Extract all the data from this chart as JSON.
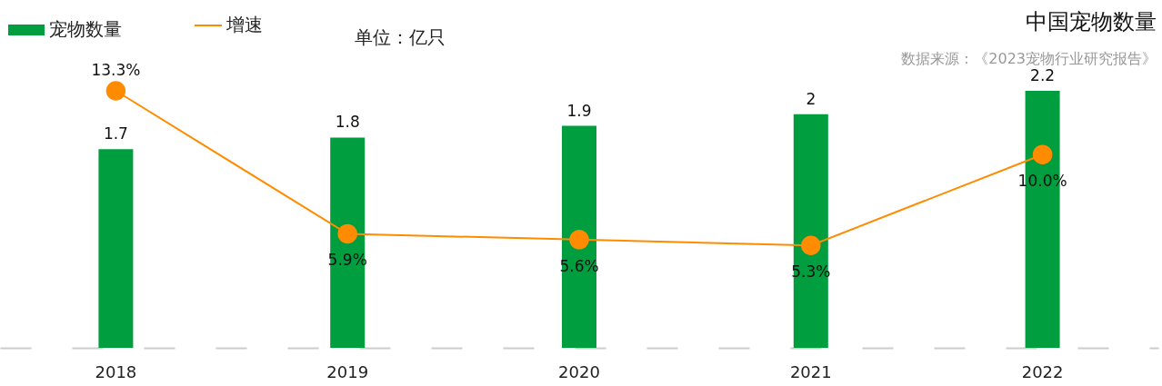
{
  "chart_data": {
    "type": "bar",
    "title": "中国宠物数量",
    "subtitle": "数据来源：《2023宠物行业研究报告》",
    "annotations": [
      "单位：亿只"
    ],
    "categories": [
      "2018",
      "2019",
      "2020",
      "2021",
      "2022"
    ],
    "series": [
      {
        "name": "宠物数量",
        "color": "#009e3f",
        "values": [
          1.7,
          1.8,
          1.9,
          2,
          2.2
        ],
        "value_labels": [
          "1.7",
          "1.8",
          "1.9",
          "2",
          "2.2"
        ]
      },
      {
        "name": "增速",
        "type": "line",
        "axis": "y2",
        "color": "#ff8c00",
        "values": [
          13.3,
          5.9,
          5.6,
          5.3,
          10.0
        ],
        "value_labels": [
          "13.3%",
          "5.9%",
          "5.6%",
          "5.3%",
          "10.0%"
        ]
      }
    ],
    "tick_labels": "x",
    "legend": "top left",
    "marker": "circle"
  }
}
